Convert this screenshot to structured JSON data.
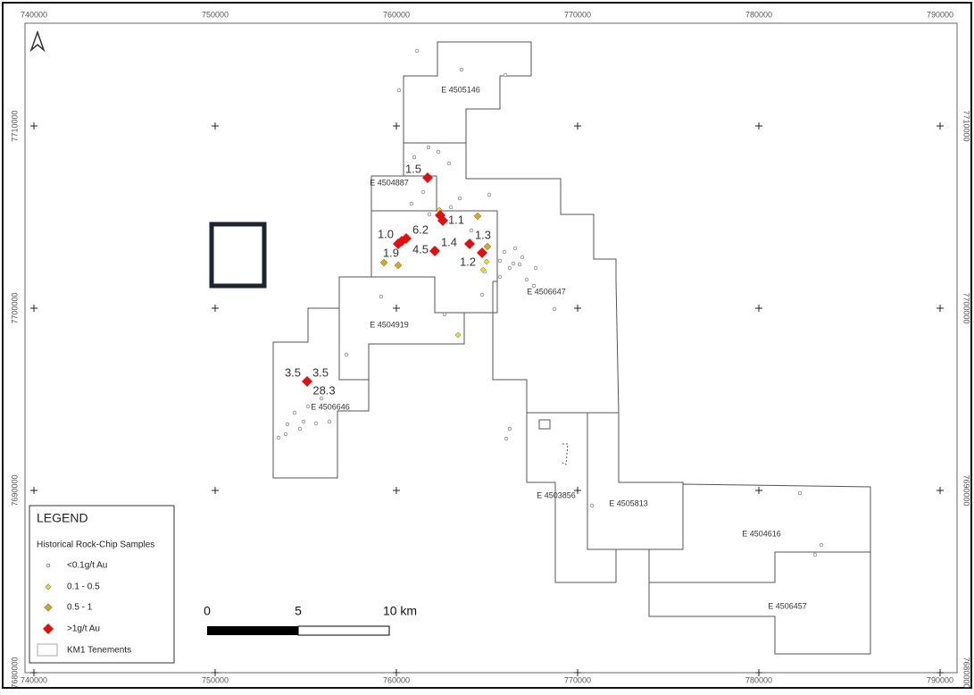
{
  "grid": {
    "eastings": [
      740000,
      750000,
      760000,
      770000,
      780000,
      790000
    ],
    "northings": [
      7710000,
      7700000,
      7690000,
      7680000
    ]
  },
  "tenements": [
    "E 4505146",
    "E 4504887",
    "E 4504919",
    "E 4506646",
    "E 4506647",
    "E 4503856",
    "E 4505813",
    "E 4504616",
    "E 4506457"
  ],
  "samples": {
    "labels": [
      "1.5",
      "1.1",
      "1.0",
      "6.2",
      "1.3",
      "1.4",
      "4.5",
      "1.9",
      "1.2",
      "3.5",
      "3.5",
      "28.3"
    ]
  },
  "legend": {
    "title": "LEGEND",
    "subtitle": "Historical Rock-Chip Samples",
    "items": [
      "<0.1g/t Au",
      "0.1 - 0.5",
      "0.5 - 1",
      ">1g/t Au",
      "KM1 Tenements"
    ]
  },
  "scale_bar": {
    "labels": [
      "0",
      "5",
      "10 km"
    ]
  }
}
